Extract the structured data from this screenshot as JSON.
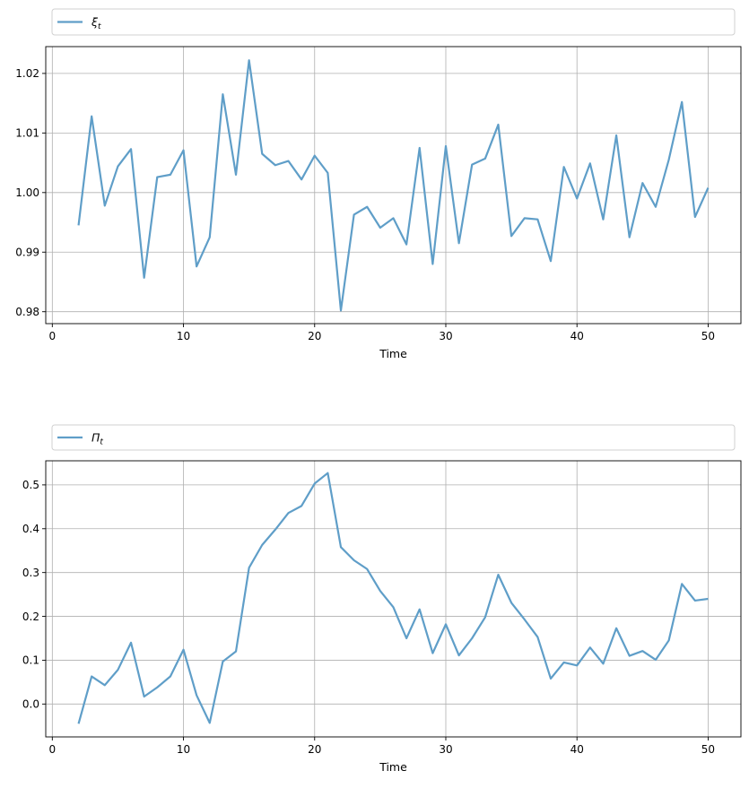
{
  "chart_data": [
    {
      "type": "line",
      "xlabel": "Time",
      "ylabel": "",
      "xlim": [
        -0.5,
        52.5
      ],
      "ylim": [
        0.978,
        1.0245
      ],
      "xticks": [
        0,
        10,
        20,
        30,
        40,
        50
      ],
      "yticks": [
        0.98,
        0.99,
        1.0,
        1.01,
        1.02
      ],
      "yticks_labels": [
        "0.98",
        "0.99",
        "1.00",
        "1.01",
        "1.02"
      ],
      "grid": true,
      "legend_position": "top-above",
      "series": [
        {
          "name": "ξ",
          "name_sub": "t",
          "color": "#5f9ec8",
          "x": [
            2,
            3,
            4,
            5,
            6,
            7,
            8,
            9,
            10,
            11,
            12,
            13,
            14,
            15,
            16,
            17,
            18,
            19,
            20,
            21,
            22,
            23,
            24,
            25,
            26,
            27,
            28,
            29,
            30,
            31,
            32,
            33,
            34,
            35,
            36,
            37,
            38,
            39,
            40,
            41,
            42,
            43,
            44,
            45,
            46,
            47,
            48,
            49,
            50
          ],
          "values": [
            0.9945,
            1.0128,
            0.9978,
            1.0044,
            1.0073,
            0.9857,
            1.0026,
            1.003,
            1.0071,
            0.9876,
            0.9925,
            1.0165,
            1.003,
            1.0222,
            1.0065,
            1.0046,
            1.0053,
            1.0022,
            1.0062,
            1.0033,
            0.9802,
            0.9963,
            0.9976,
            0.9941,
            0.9957,
            0.9913,
            1.0075,
            0.988,
            1.0078,
            0.9915,
            1.0047,
            1.0057,
            1.0114,
            0.9927,
            0.9957,
            0.9955,
            0.9885,
            1.0043,
            0.999,
            1.0049,
            0.9955,
            1.0096,
            0.9925,
            1.0016,
            0.9976,
            1.0055,
            1.0152,
            0.9959,
            1.0008
          ]
        }
      ]
    },
    {
      "type": "line",
      "xlabel": "Time",
      "ylabel": "",
      "xlim": [
        -0.5,
        52.5
      ],
      "ylim": [
        -0.075,
        0.555
      ],
      "xticks": [
        0,
        10,
        20,
        30,
        40,
        50
      ],
      "yticks": [
        0.0,
        0.1,
        0.2,
        0.3,
        0.4,
        0.5
      ],
      "yticks_labels": [
        "0.0",
        "0.1",
        "0.2",
        "0.3",
        "0.4",
        "0.5"
      ],
      "grid": true,
      "legend_position": "top-above",
      "series": [
        {
          "name": "Π",
          "name_sub": "t",
          "color": "#5f9ec8",
          "x": [
            2,
            3,
            4,
            5,
            6,
            7,
            8,
            9,
            10,
            11,
            12,
            13,
            14,
            15,
            16,
            17,
            18,
            19,
            20,
            21,
            22,
            23,
            24,
            25,
            26,
            27,
            28,
            29,
            30,
            31,
            32,
            33,
            34,
            35,
            36,
            37,
            38,
            39,
            40,
            41,
            42,
            43,
            44,
            45,
            46,
            47,
            48,
            49,
            50
          ],
          "values": [
            -0.045,
            0.063,
            0.043,
            0.078,
            0.14,
            0.017,
            0.038,
            0.063,
            0.124,
            0.02,
            -0.043,
            0.097,
            0.12,
            0.311,
            0.363,
            0.398,
            0.436,
            0.452,
            0.503,
            0.527,
            0.358,
            0.328,
            0.308,
            0.258,
            0.221,
            0.15,
            0.216,
            0.116,
            0.182,
            0.111,
            0.15,
            0.198,
            0.295,
            0.231,
            0.193,
            0.153,
            0.058,
            0.095,
            0.088,
            0.129,
            0.092,
            0.173,
            0.11,
            0.121,
            0.101,
            0.145,
            0.274,
            0.236,
            0.24
          ]
        }
      ]
    }
  ]
}
